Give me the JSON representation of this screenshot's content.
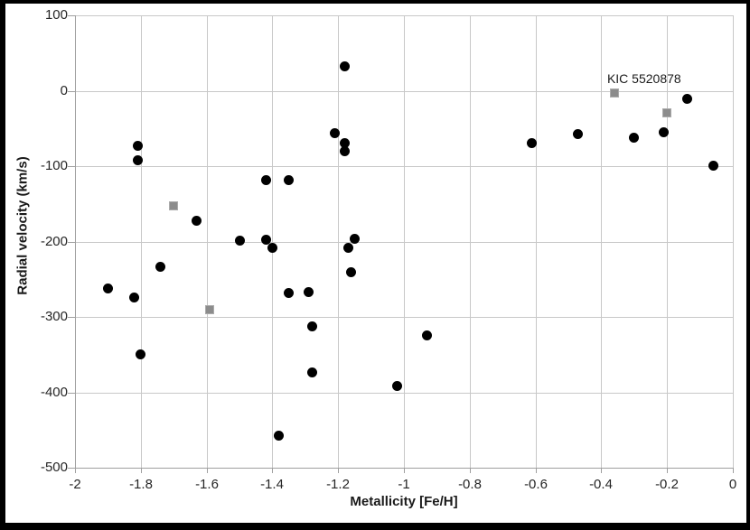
{
  "chart_data": {
    "type": "scatter",
    "title": "",
    "xlabel": "Metallicity [Fe/H]",
    "ylabel": "Radial velocity (km/s)",
    "xlim": [
      -2,
      0
    ],
    "ylim": [
      -500,
      100
    ],
    "x_tick_labels": [
      "-2",
      "-1.8",
      "-1.6",
      "-1.4",
      "-1.2",
      "-1",
      "-0.8",
      "-0.6",
      "-0.4",
      "-0.2",
      "0"
    ],
    "y_tick_labels": [
      "100",
      "0",
      "-100",
      "-200",
      "-300",
      "-400",
      "-500"
    ],
    "grid": true,
    "legend": "none",
    "series": [
      {
        "name": "black-circles",
        "marker": "circle",
        "color": "#000000",
        "points": [
          [
            -1.9,
            -262
          ],
          [
            -1.82,
            -274
          ],
          [
            -1.81,
            -73
          ],
          [
            -1.81,
            -92
          ],
          [
            -1.8,
            -350
          ],
          [
            -1.74,
            -234
          ],
          [
            -1.63,
            -172
          ],
          [
            -1.5,
            -199
          ],
          [
            -1.42,
            -118
          ],
          [
            -1.42,
            -198
          ],
          [
            -1.4,
            -208
          ],
          [
            -1.38,
            -457
          ],
          [
            -1.35,
            -118
          ],
          [
            -1.35,
            -268
          ],
          [
            -1.29,
            -267
          ],
          [
            -1.28,
            -313
          ],
          [
            -1.28,
            -374
          ],
          [
            -1.21,
            -56
          ],
          [
            -1.18,
            32
          ],
          [
            -1.18,
            -69
          ],
          [
            -1.18,
            -80
          ],
          [
            -1.17,
            -208
          ],
          [
            -1.16,
            -241
          ],
          [
            -1.15,
            -197
          ],
          [
            -1.02,
            -392
          ],
          [
            -0.93,
            -325
          ],
          [
            -0.61,
            -70
          ],
          [
            -0.47,
            -58
          ],
          [
            -0.3,
            -62
          ],
          [
            -0.21,
            -55
          ],
          [
            -0.14,
            -11
          ],
          [
            -0.06,
            -99
          ]
        ]
      },
      {
        "name": "gray-squares",
        "marker": "square",
        "color": "#8c8c8c",
        "points": [
          [
            -1.7,
            -153
          ],
          [
            -1.59,
            -290
          ],
          [
            -0.36,
            -3
          ],
          [
            -0.2,
            -29
          ]
        ]
      }
    ],
    "annotation": {
      "text": "KIC 5520878",
      "x": -0.36,
      "y": -3
    }
  },
  "colors": {
    "background": "#ffffff",
    "frame": "#000000",
    "gridline": "#c8c8c8",
    "axis": "#9f9f9f",
    "text": "#262626",
    "circle": "#000000",
    "square": "#8c8c8c"
  }
}
